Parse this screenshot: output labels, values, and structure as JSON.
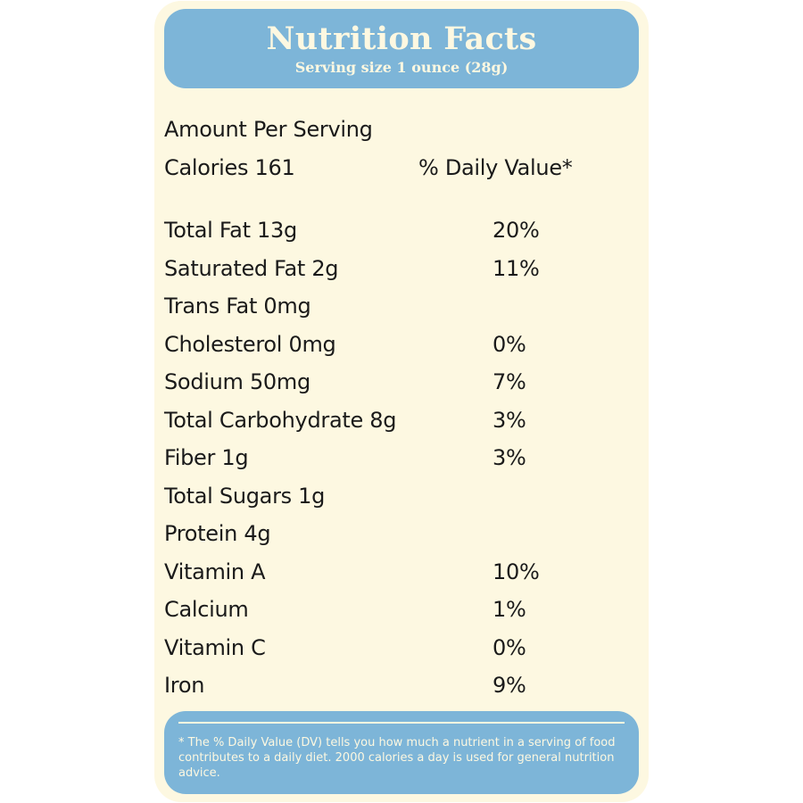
{
  "header": {
    "title": "Nutrition Facts",
    "serving": "Serving size 1 ounce (28g)"
  },
  "summary": {
    "amount_per_serving": "Amount  Per Serving",
    "calories": "Calories 161",
    "daily_value_heading": "% Daily Value*"
  },
  "nutrients": [
    {
      "label": "Total Fat 13g",
      "dv": "20%"
    },
    {
      "label": "Saturated Fat 2g",
      "dv": "11%"
    },
    {
      "label": "Trans Fat 0mg",
      "dv": ""
    },
    {
      "label": "Cholesterol 0mg",
      "dv": "0%"
    },
    {
      "label": "Sodium 50mg",
      "dv": "7%"
    },
    {
      "label": "Total Carbohydrate 8g",
      "dv": "3%"
    },
    {
      "label": "Fiber 1g",
      "dv": "3%"
    },
    {
      "label": "Total Sugars 1g",
      "dv": ""
    },
    {
      "label": "Protein 4g",
      "dv": ""
    },
    {
      "label": "Vitamin A",
      "dv": "10%"
    },
    {
      "label": "Calcium",
      "dv": "1%"
    },
    {
      "label": "Vitamin C",
      "dv": "0%"
    },
    {
      "label": "Iron",
      "dv": "9%"
    }
  ],
  "footer": {
    "note": "* The % Daily Value (DV) tells you how much a nutrient in a serving of food contributes to a daily diet. 2000 calories a day is used for general nutrition advice."
  },
  "colors": {
    "card_background": "#fdf8e1",
    "accent_blue": "#7db5d8",
    "text": "#1a1a1a"
  }
}
